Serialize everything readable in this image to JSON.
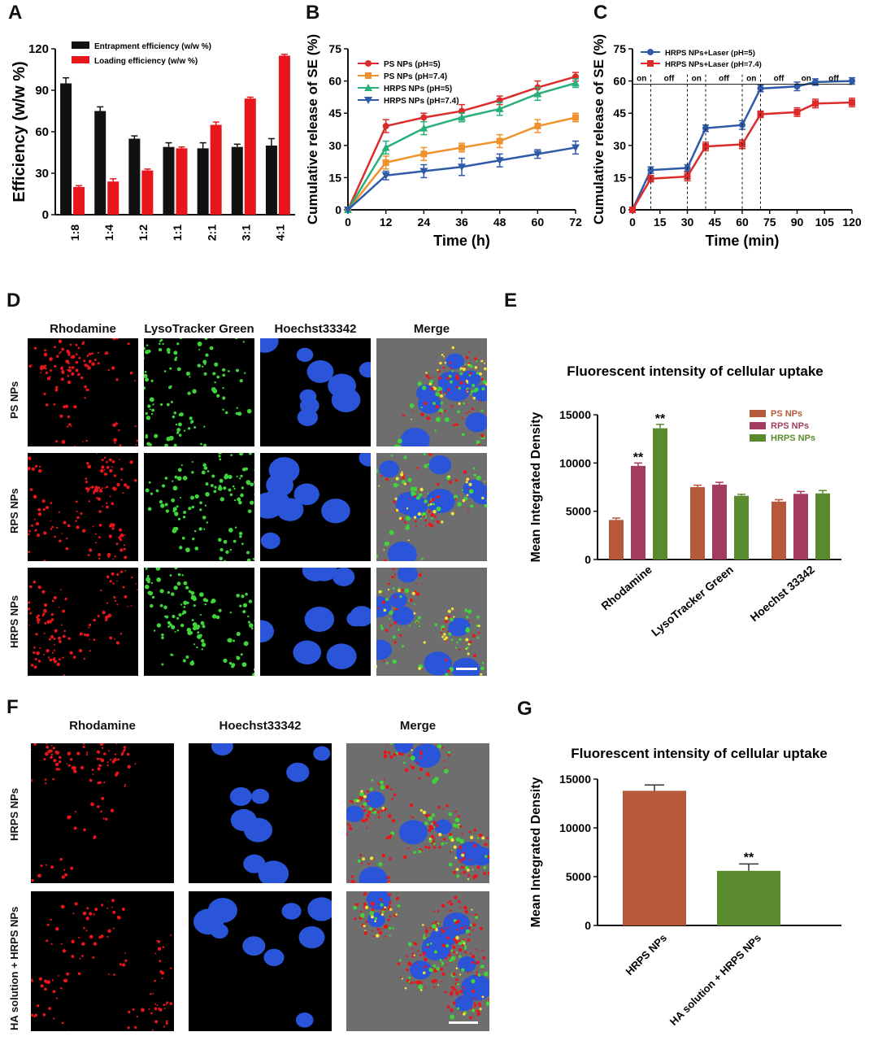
{
  "panels": {
    "A": "A",
    "B": "B",
    "C": "C",
    "D": "D",
    "E": "E",
    "F": "F",
    "G": "G"
  },
  "colors": {
    "black_bar": "#111111",
    "red_bar": "#e8161b",
    "ps": "#dc2b2b",
    "ps74": "#f0922b",
    "hrps5": "#29b07a",
    "hrps74": "#2f5aa8",
    "e_ps": "#b5593a",
    "e_rps": "#a33a5f",
    "e_hrps": "#5a8a2e",
    "g_hrps": "#b5593a",
    "g_ha": "#5a8a2e"
  },
  "chart_data": [
    {
      "panel": "A",
      "type": "bar",
      "ylabel": "Efficiency (w/w %)",
      "ylim": [
        0,
        120
      ],
      "yticks": [
        "0",
        "30",
        "60",
        "90",
        "120"
      ],
      "categories": [
        "1:8",
        "1:4",
        "1:2",
        "1:1",
        "2:1",
        "3:1",
        "4:1"
      ],
      "series": [
        {
          "name": "Entrapment efficiency (w/w %)",
          "values": [
            95,
            75,
            55,
            49,
            48,
            49,
            50
          ],
          "errors": [
            4,
            3,
            2,
            3,
            4,
            2,
            5
          ]
        },
        {
          "name": "Loading efficiency (w/w %)",
          "values": [
            20,
            24,
            32,
            48,
            65,
            84,
            115
          ],
          "errors": [
            1,
            2,
            1,
            1,
            2,
            1,
            1
          ]
        }
      ],
      "legend": "top-right"
    },
    {
      "panel": "B",
      "type": "line",
      "xlabel": "Time (h)",
      "ylabel": "Cumulative release of SE (%)",
      "xlim": [
        0,
        72
      ],
      "ylim": [
        0,
        75
      ],
      "xticks": [
        "0",
        "12",
        "24",
        "36",
        "48",
        "60",
        "72"
      ],
      "yticks": [
        "0",
        "15",
        "30",
        "45",
        "60",
        "75"
      ],
      "x": [
        0,
        12,
        24,
        36,
        48,
        60,
        72
      ],
      "series": [
        {
          "name": "PS NPs (pH=5)",
          "values": [
            0,
            39,
            43,
            46,
            51,
            57,
            62
          ],
          "errors": [
            0,
            3,
            2,
            3,
            2,
            3,
            2
          ]
        },
        {
          "name": "PS NPs (pH=7.4)",
          "values": [
            0,
            22,
            26,
            29,
            32,
            39,
            43
          ],
          "errors": [
            0,
            3,
            3,
            2,
            3,
            3,
            2
          ]
        },
        {
          "name": "HRPS NPs (pH=5)",
          "values": [
            0,
            29,
            38,
            43,
            47,
            54,
            59
          ],
          "errors": [
            0,
            3,
            3,
            2,
            3,
            3,
            2
          ]
        },
        {
          "name": "HRPS NPs (pH=7.4)",
          "values": [
            0,
            16,
            18,
            20,
            23,
            26,
            29
          ],
          "errors": [
            0,
            2,
            3,
            4,
            3,
            2,
            3
          ]
        }
      ],
      "legend": "top-left"
    },
    {
      "panel": "C",
      "type": "line",
      "xlabel": "Time (min)",
      "ylabel": "Cumulative release of SE (%)",
      "xlim": [
        0,
        120
      ],
      "ylim": [
        0,
        75
      ],
      "xticks": [
        "0",
        "15",
        "30",
        "45",
        "60",
        "75",
        "90",
        "105",
        "120"
      ],
      "yticks": [
        "0",
        "15",
        "30",
        "45",
        "60",
        "75"
      ],
      "x": [
        0,
        10,
        30,
        40,
        60,
        70,
        90,
        100,
        120
      ],
      "series": [
        {
          "name": "HRPS NPs+Laser (pH=5)",
          "values": [
            0,
            18.5,
            19.5,
            38,
            39.5,
            56.5,
            57.5,
            59.5,
            60
          ],
          "errors": [
            0,
            1.5,
            1.5,
            1.5,
            2,
            1.5,
            2,
            1.5,
            1.5
          ]
        },
        {
          "name": "HRPS NPs+Laser (pH=7.4)",
          "values": [
            0,
            14.5,
            15.5,
            29.5,
            30.5,
            44.5,
            45.5,
            49.5,
            50
          ],
          "errors": [
            0,
            1.5,
            2,
            2,
            2,
            1.5,
            2,
            2,
            2
          ]
        }
      ],
      "laser_labels": [
        "on",
        "off",
        "on",
        "off",
        "on",
        "off",
        "on",
        "off"
      ],
      "legend": "top-left"
    },
    {
      "panel": "E",
      "type": "bar",
      "title": "Fluorescent intensity of cellular uptake",
      "ylabel": "Mean Integrated Density",
      "ylim": [
        0,
        15000
      ],
      "yticks": [
        "0",
        "5000",
        "10000",
        "15000"
      ],
      "categories": [
        "Rhodamine",
        "LysoTracker Green",
        "Hoechst 33342"
      ],
      "series": [
        {
          "name": "PS NPs",
          "values": [
            4100,
            7500,
            6000
          ],
          "errors": [
            200,
            200,
            200
          ]
        },
        {
          "name": "RPS NPs",
          "values": [
            9700,
            7750,
            6800
          ],
          "errors": [
            300,
            250,
            250
          ]
        },
        {
          "name": "HRPS NPs",
          "values": [
            13600,
            6600,
            6850
          ],
          "errors": [
            400,
            150,
            300
          ]
        }
      ],
      "significance": [
        "**",
        "**"
      ],
      "legend": "top-right"
    },
    {
      "panel": "G",
      "type": "bar",
      "title": "Fluorescent intensity of cellular uptake",
      "ylabel": "Mean Integrated Density",
      "ylim": [
        0,
        15000
      ],
      "yticks": [
        "0",
        "5000",
        "10000",
        "15000"
      ],
      "categories": [
        "HRPS NPs",
        "HA solution + HRPS NPs"
      ],
      "values": [
        13800,
        5600
      ],
      "errors": [
        600,
        700
      ],
      "significance": [
        "",
        "**"
      ]
    }
  ],
  "microscopy_D": {
    "columns": [
      "Rhodamine",
      "LysoTracker Green",
      "Hoechst33342",
      "Merge"
    ],
    "rows": [
      "PS NPs",
      "RPS NPs",
      "HRPS NPs"
    ]
  },
  "microscopy_F": {
    "columns": [
      "Rhodamine",
      "Hoechst33342",
      "Merge"
    ],
    "rows": [
      "HRPS NPs",
      "HA solution + HRPS NPs"
    ]
  }
}
